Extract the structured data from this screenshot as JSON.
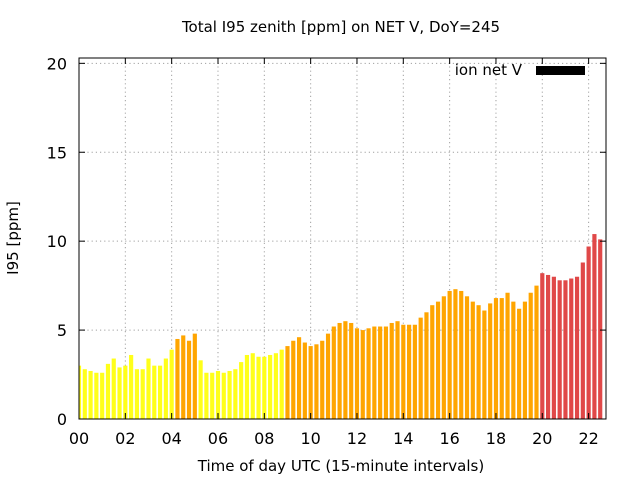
{
  "chart_data": {
    "type": "bar",
    "title": "Total I95 zenith [ppm] on NET V, DoY=245",
    "xlabel": "Time of day UTC (15-minute intervals)",
    "ylabel": "I95 [ppm]",
    "xlim": [
      0,
      22.75
    ],
    "ylim": [
      0,
      20.3
    ],
    "x_ticks": [
      "00",
      "02",
      "04",
      "06",
      "08",
      "10",
      "12",
      "14",
      "16",
      "18",
      "20",
      "22"
    ],
    "x_tick_values": [
      0,
      2,
      4,
      6,
      8,
      10,
      12,
      14,
      16,
      18,
      20,
      22
    ],
    "y_ticks": [
      "0",
      "5",
      "10",
      "15",
      "20"
    ],
    "y_tick_values": [
      0,
      5,
      10,
      15,
      20
    ],
    "grid": true,
    "legend": {
      "label": "ion net V",
      "color": "#000000",
      "placement": "top-right"
    },
    "bar_interval_hours": 0.25,
    "colors": {
      "low": "#ffff1a",
      "medium": "#ffa500",
      "high": "#e04848"
    },
    "series": [
      {
        "values": [
          3.0,
          2.8,
          2.7,
          2.6,
          2.6,
          3.1,
          3.4,
          2.9,
          3.0,
          3.6,
          2.8,
          2.8,
          3.4,
          3.0,
          3.0,
          3.4,
          3.9,
          4.5,
          4.7,
          4.4,
          4.8,
          3.3,
          2.6,
          2.6,
          2.7,
          2.6,
          2.7,
          2.8,
          3.2,
          3.6,
          3.7,
          3.5,
          3.5,
          3.6,
          3.7,
          3.9,
          4.1,
          4.4,
          4.6,
          4.3,
          4.1,
          4.2,
          4.4,
          4.8,
          5.2,
          5.4,
          5.5,
          5.4,
          5.1,
          5.0,
          5.1,
          5.2,
          5.2,
          5.2,
          5.4,
          5.5,
          5.3,
          5.3,
          5.3,
          5.7,
          6.0,
          6.4,
          6.6,
          6.9,
          7.2,
          7.3,
          7.2,
          6.9,
          6.6,
          6.4,
          6.1,
          6.5,
          6.8,
          6.8,
          7.1,
          6.6,
          6.2,
          6.6,
          7.1,
          7.5,
          8.2,
          8.1,
          8.0,
          7.8,
          7.8,
          7.9,
          8.0,
          8.8,
          9.7,
          10.4,
          10.1
        ],
        "levels": [
          "low",
          "low",
          "low",
          "low",
          "low",
          "low",
          "low",
          "low",
          "low",
          "low",
          "low",
          "low",
          "low",
          "low",
          "low",
          "low",
          "low",
          "medium",
          "medium",
          "medium",
          "medium",
          "low",
          "low",
          "low",
          "low",
          "low",
          "low",
          "low",
          "low",
          "low",
          "low",
          "low",
          "low",
          "low",
          "low",
          "low",
          "medium",
          "medium",
          "medium",
          "medium",
          "medium",
          "medium",
          "medium",
          "medium",
          "medium",
          "medium",
          "medium",
          "medium",
          "medium",
          "medium",
          "medium",
          "medium",
          "medium",
          "medium",
          "medium",
          "medium",
          "medium",
          "medium",
          "medium",
          "medium",
          "medium",
          "medium",
          "medium",
          "medium",
          "medium",
          "medium",
          "medium",
          "medium",
          "medium",
          "medium",
          "medium",
          "medium",
          "medium",
          "medium",
          "medium",
          "medium",
          "medium",
          "medium",
          "medium",
          "medium",
          "high",
          "high",
          "high",
          "high",
          "high",
          "high",
          "high",
          "high",
          "high",
          "high",
          "high"
        ]
      }
    ]
  }
}
